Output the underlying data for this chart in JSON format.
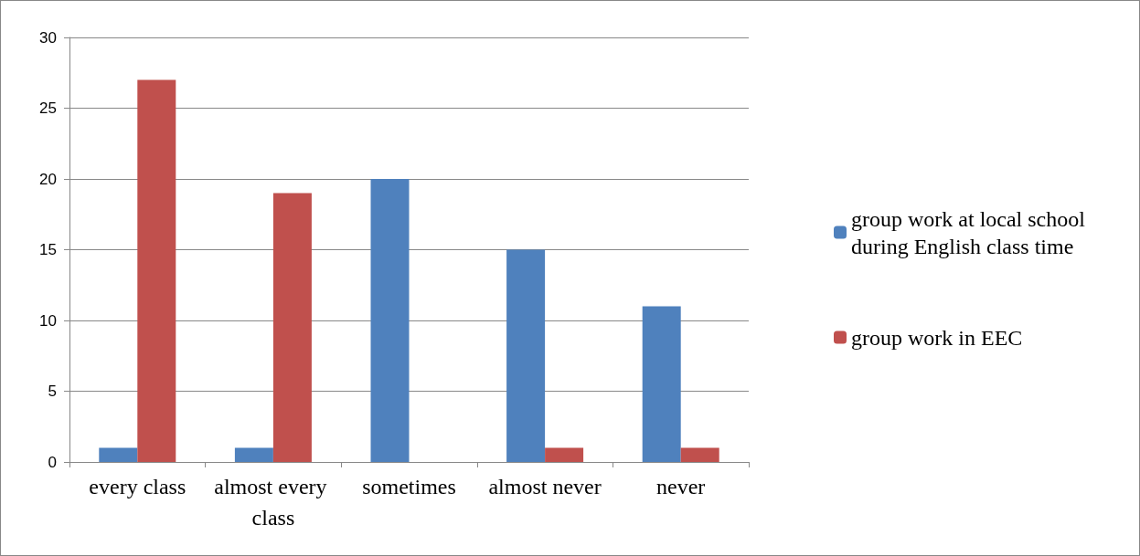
{
  "chart_data": {
    "type": "bar",
    "categories": [
      "every class",
      "almost every class",
      "sometimes",
      "almost never",
      "never"
    ],
    "series": [
      {
        "name": "group work at local school during English class time",
        "color": "#4f81bd",
        "values": [
          1,
          1,
          20,
          15,
          11
        ]
      },
      {
        "name": "group work in EEC",
        "color": "#c0504d",
        "values": [
          27,
          19,
          0,
          1,
          1
        ]
      }
    ],
    "ylim": [
      0,
      30
    ],
    "yticks": [
      0,
      5,
      10,
      15,
      20,
      25,
      30
    ],
    "grid": "y",
    "legend": "right"
  }
}
